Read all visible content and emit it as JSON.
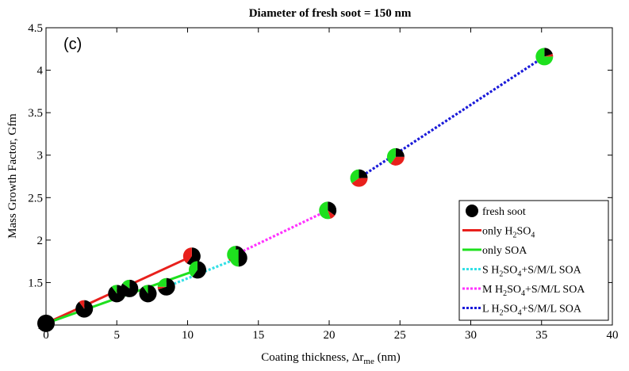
{
  "chart_data": {
    "type": "scatter",
    "title": "Diameter of fresh soot = 150 nm",
    "panel_label": "(c)",
    "xlabel": {
      "main": "Coating thickness, ",
      "delta": "Δr",
      "sub": "me",
      "unit": " (nm)"
    },
    "ylabel": "Mass Growth Factor, Gfm",
    "xlim": [
      0,
      40
    ],
    "ylim": [
      1,
      4.5
    ],
    "xticks": [
      0,
      5,
      10,
      15,
      20,
      25,
      30,
      35,
      40
    ],
    "yticks": [
      1,
      1.5,
      2,
      2.5,
      3,
      3.5,
      4,
      4.5
    ],
    "xtick_labels": [
      "0",
      "5",
      "10",
      "15",
      "20",
      "25",
      "30",
      "35",
      "40"
    ],
    "ytick_labels": [
      "1",
      "1.5",
      "2",
      "2.5",
      "3",
      "3.5",
      "4",
      "4.5"
    ],
    "grid": false,
    "legend_position": "bottom-right",
    "colors": {
      "soot": "#000000",
      "h2so4": "#e8201c",
      "soa": "#1ee01e",
      "small": "#33e0e6",
      "medium": "#ff33ff",
      "large": "#1a1ad9"
    },
    "legend": [
      {
        "kind": "marker",
        "text": "fresh soot",
        "color": "#000000"
      },
      {
        "kind": "line",
        "pre": "only H",
        "sub1": "2",
        "mid": "SO",
        "sub2": "4",
        "post": "",
        "color": "#e8201c",
        "dash": "solid"
      },
      {
        "kind": "line",
        "pre": "only SOA",
        "sub1": "",
        "mid": "",
        "sub2": "",
        "post": "",
        "color": "#1ee01e",
        "dash": "solid"
      },
      {
        "kind": "line",
        "pre": "S H",
        "sub1": "2",
        "mid": "SO",
        "sub2": "4",
        "post": "+S/M/L SOA",
        "color": "#33e0e6",
        "dash": "dotted"
      },
      {
        "kind": "line",
        "pre": "M H",
        "sub1": "2",
        "mid": "SO",
        "sub2": "4",
        "post": "+S/M/L SOA",
        "color": "#ff33ff",
        "dash": "dotted"
      },
      {
        "kind": "line",
        "pre": "L H",
        "sub1": "2",
        "mid": "SO",
        "sub2": "4",
        "post": "+S/M/L SOA",
        "color": "#1a1ad9",
        "dash": "dotted"
      }
    ],
    "series": [
      {
        "name": "only H2SO4",
        "color": "#e8201c",
        "dash": "solid",
        "x": [
          0,
          10.3
        ],
        "y": [
          1.02,
          1.81
        ]
      },
      {
        "name": "only SOA",
        "color": "#1ee01e",
        "dash": "solid",
        "x": [
          0,
          10.7
        ],
        "y": [
          1.02,
          1.65
        ]
      },
      {
        "name": "S H2SO4+S/M/L SOA",
        "color": "#33e0e6",
        "dash": "dotted",
        "x": [
          8.5,
          13.6
        ],
        "y": [
          1.45,
          1.79
        ]
      },
      {
        "name": "M H2SO4+S/M/L SOA",
        "color": "#ff33ff",
        "dash": "dotted",
        "x": [
          13.4,
          19.9
        ],
        "y": [
          1.83,
          2.35
        ]
      },
      {
        "name": "L H2SO4+S/M/L SOA",
        "color": "#1a1ad9",
        "dash": "dotted",
        "x": [
          22.1,
          35.2
        ],
        "y": [
          2.73,
          4.16
        ]
      }
    ],
    "points": [
      {
        "x": 0,
        "y": 1.02,
        "soot": 1.0,
        "h2so4": 0.0,
        "soa": 0.0
      },
      {
        "x": 2.7,
        "y": 1.19,
        "soot": 0.9,
        "h2so4": 0.1,
        "soa": 0.0
      },
      {
        "x": 5.0,
        "y": 1.37,
        "soot": 0.9,
        "h2so4": 0.0,
        "soa": 0.1
      },
      {
        "x": 5.9,
        "y": 1.43,
        "soot": 0.85,
        "h2so4": 0.0,
        "soa": 0.15
      },
      {
        "x": 7.2,
        "y": 1.37,
        "soot": 0.9,
        "h2so4": 0.0,
        "soa": 0.1
      },
      {
        "x": 8.5,
        "y": 1.45,
        "soot": 0.7,
        "h2so4": 0.05,
        "soa": 0.25
      },
      {
        "x": 10.3,
        "y": 1.81,
        "soot": 0.6,
        "h2so4": 0.4,
        "soa": 0.0
      },
      {
        "x": 10.7,
        "y": 1.65,
        "soot": 0.6,
        "h2so4": 0.0,
        "soa": 0.4
      },
      {
        "x": 13.4,
        "y": 1.83,
        "soot": 0.55,
        "h2so4": 0.1,
        "soa": 0.35
      },
      {
        "x": 13.6,
        "y": 1.79,
        "soot": 0.5,
        "h2so4": 0.0,
        "soa": 0.5
      },
      {
        "x": 19.9,
        "y": 2.35,
        "soot": 0.35,
        "h2so4": 0.1,
        "soa": 0.55
      },
      {
        "x": 22.1,
        "y": 2.73,
        "soot": 0.25,
        "h2so4": 0.4,
        "soa": 0.35
      },
      {
        "x": 24.7,
        "y": 2.98,
        "soot": 0.25,
        "h2so4": 0.35,
        "soa": 0.4
      },
      {
        "x": 35.2,
        "y": 4.16,
        "soot": 0.2,
        "h2so4": 0.05,
        "soa": 0.75
      }
    ]
  }
}
